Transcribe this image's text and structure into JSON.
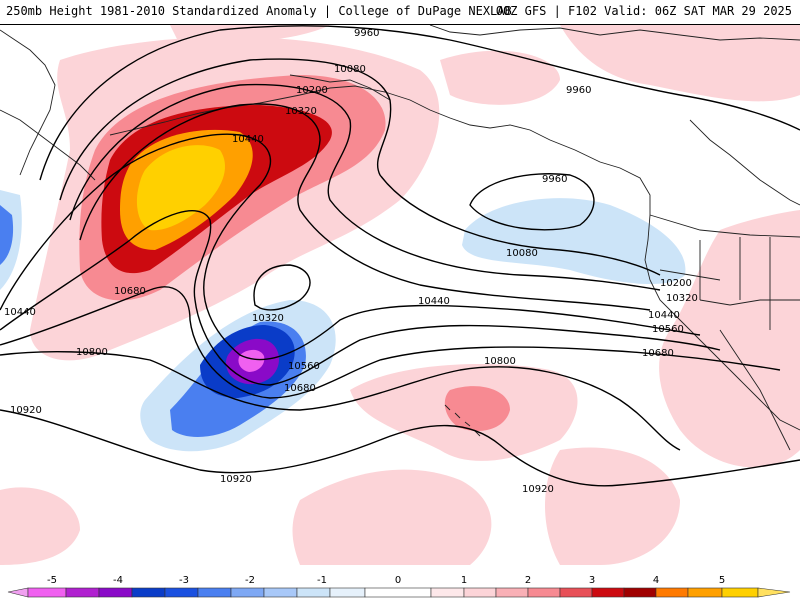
{
  "header": {
    "title": "250mb Height 1981-2010 Standardized Anomaly | College of DuPage NEXLAB",
    "valid": "00Z GFS | F102 Valid: 06Z SAT MAR 29 2025"
  },
  "colors": {
    "pos1": "#fcd4d8",
    "pos2": "#f78a92",
    "pos3": "#cc0a10",
    "pos4": "#ffa000",
    "pos5": "#ffd000",
    "neg1": "#cce4f8",
    "neg2": "#4a7ff0",
    "neg3": "#0a3cc8",
    "neg4": "#8a0ac8",
    "neg5": "#f060f0",
    "contour": "#000000",
    "coast": "#222222"
  },
  "contour_labels": [
    {
      "text": "9960"
    },
    {
      "text": "10080"
    },
    {
      "text": "10200"
    },
    {
      "text": "10320"
    },
    {
      "text": "10440"
    },
    {
      "text": "9960"
    },
    {
      "text": "9960"
    },
    {
      "text": "10080"
    },
    {
      "text": "10680"
    },
    {
      "text": "10440"
    },
    {
      "text": "10320"
    },
    {
      "text": "10200"
    },
    {
      "text": "10320"
    },
    {
      "text": "10440"
    },
    {
      "text": "10440"
    },
    {
      "text": "10560"
    },
    {
      "text": "10560"
    },
    {
      "text": "10680"
    },
    {
      "text": "10680"
    },
    {
      "text": "10800"
    },
    {
      "text": "10800"
    },
    {
      "text": "10920"
    },
    {
      "text": "10920"
    },
    {
      "text": "10920"
    }
  ],
  "colorbar": {
    "labels": [
      "-5",
      "-4",
      "-3",
      "-2",
      "-1",
      "0",
      "1",
      "2",
      "3",
      "4",
      "5"
    ]
  }
}
